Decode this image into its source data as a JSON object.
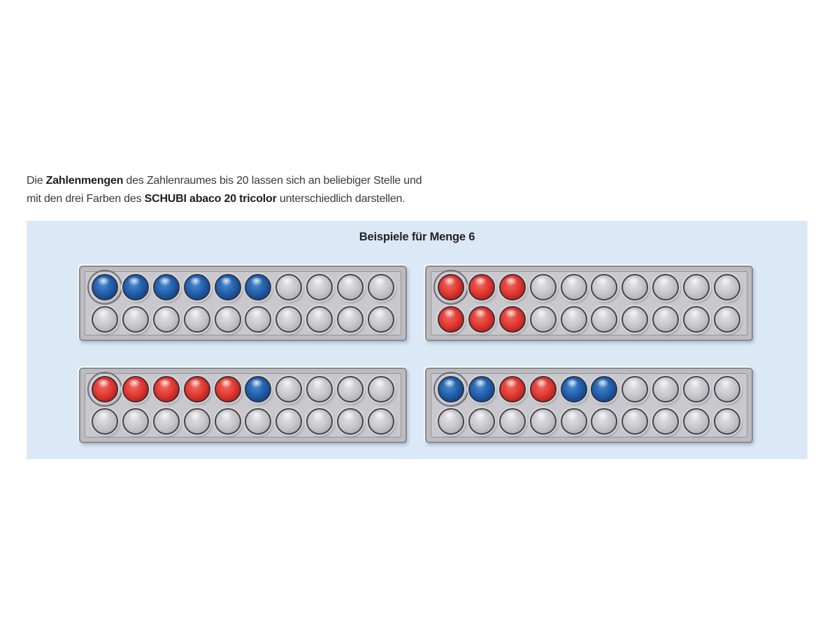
{
  "intro": {
    "line1_pre": "Die ",
    "line1_bold": "Zahlenmengen",
    "line1_post": " des Zahlenraumes bis 20 lassen sich an beliebiger Stelle und",
    "line2_pre": "mit den drei Farben des ",
    "line2_bold": "SCHUBI abaco 20 tricolor",
    "line2_post": " unterschiedlich darstellen."
  },
  "panel": {
    "title": "Beispiele für Menge 6",
    "background": "#dbe8f6"
  },
  "colors": {
    "bead_blue": "#2260ac",
    "bead_red": "#dc3a32",
    "bead_gray": "#c6c6ca",
    "frame_gray": "#c9c9cd",
    "frame_border": "#8a8a8e"
  },
  "quantity_shown": 6,
  "abacuses": [
    {
      "id": "abacus-top-left",
      "ring_marker": {
        "row": 0,
        "col": 0
      },
      "rows": [
        [
          "blue",
          "blue",
          "blue",
          "blue",
          "blue",
          "blue",
          "gray",
          "gray",
          "gray",
          "gray"
        ],
        [
          "gray",
          "gray",
          "gray",
          "gray",
          "gray",
          "gray",
          "gray",
          "gray",
          "gray",
          "gray"
        ]
      ]
    },
    {
      "id": "abacus-top-right",
      "ring_marker": {
        "row": 0,
        "col": 0
      },
      "rows": [
        [
          "red",
          "red",
          "red",
          "gray",
          "gray",
          "gray",
          "gray",
          "gray",
          "gray",
          "gray"
        ],
        [
          "red",
          "red",
          "red",
          "gray",
          "gray",
          "gray",
          "gray",
          "gray",
          "gray",
          "gray"
        ]
      ]
    },
    {
      "id": "abacus-bottom-left",
      "ring_marker": {
        "row": 0,
        "col": 0
      },
      "rows": [
        [
          "red",
          "red",
          "red",
          "red",
          "red",
          "blue",
          "gray",
          "gray",
          "gray",
          "gray"
        ],
        [
          "gray",
          "gray",
          "gray",
          "gray",
          "gray",
          "gray",
          "gray",
          "gray",
          "gray",
          "gray"
        ]
      ]
    },
    {
      "id": "abacus-bottom-right",
      "ring_marker": {
        "row": 0,
        "col": 0
      },
      "rows": [
        [
          "blue",
          "blue",
          "red",
          "red",
          "blue",
          "blue",
          "gray",
          "gray",
          "gray",
          "gray"
        ],
        [
          "gray",
          "gray",
          "gray",
          "gray",
          "gray",
          "gray",
          "gray",
          "gray",
          "gray",
          "gray"
        ]
      ]
    }
  ]
}
